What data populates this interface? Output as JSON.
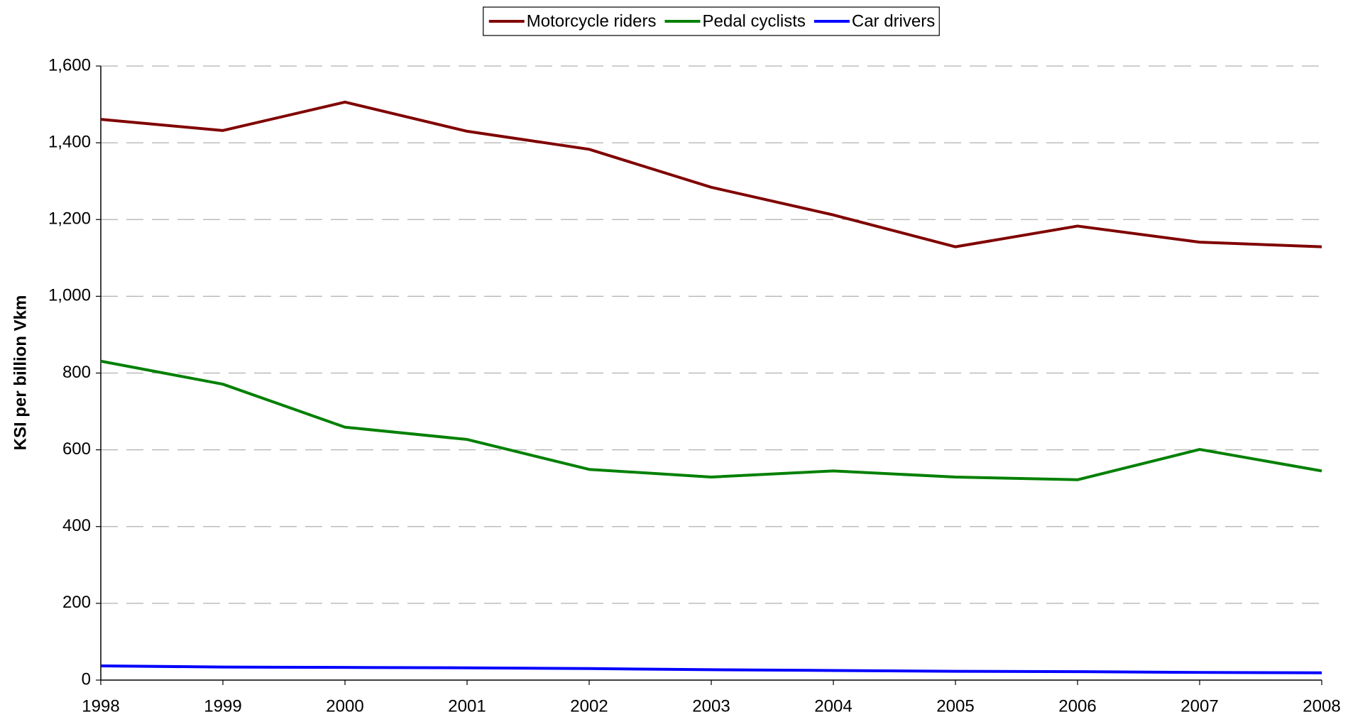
{
  "chart_data": {
    "type": "line",
    "y_label": "KSI per billion Vkm",
    "x": [
      1998,
      1999,
      2000,
      2001,
      2002,
      2003,
      2004,
      2005,
      2006,
      2007,
      2008
    ],
    "xlim": [
      1998,
      2008
    ],
    "xticks": [
      1998,
      1999,
      2000,
      2001,
      2002,
      2003,
      2004,
      2005,
      2006,
      2007,
      2008
    ],
    "ylim": [
      0,
      1600
    ],
    "yticks": [
      0,
      {
        "value": 200,
        "label": "200"
      },
      {
        "value": 400,
        "label": "400"
      },
      {
        "value": 600,
        "label": "600"
      },
      {
        "value": 800,
        "label": "800"
      },
      {
        "value": 1000,
        "label": "1,000"
      },
      {
        "value": 1200,
        "label": "1,200"
      },
      {
        "value": 1400,
        "label": "1,400"
      },
      {
        "value": 1600,
        "label": "1,600"
      }
    ],
    "grid": true,
    "legend": "top",
    "series": [
      {
        "name": "Motorcycle riders",
        "color": "#800000",
        "values": [
          1461,
          1432,
          1506,
          1430,
          1383,
          1284,
          1212,
          1129,
          1183,
          1141,
          1129
        ]
      },
      {
        "name": "Pedal cyclists",
        "color": "#008000",
        "values": [
          831,
          771,
          659,
          627,
          549,
          529,
          545,
          529,
          522,
          601,
          545
        ]
      },
      {
        "name": "Car drivers",
        "color": "#0000ff",
        "values": [
          37,
          34,
          33,
          32,
          30,
          27,
          25,
          23,
          22,
          20,
          19
        ]
      }
    ]
  }
}
